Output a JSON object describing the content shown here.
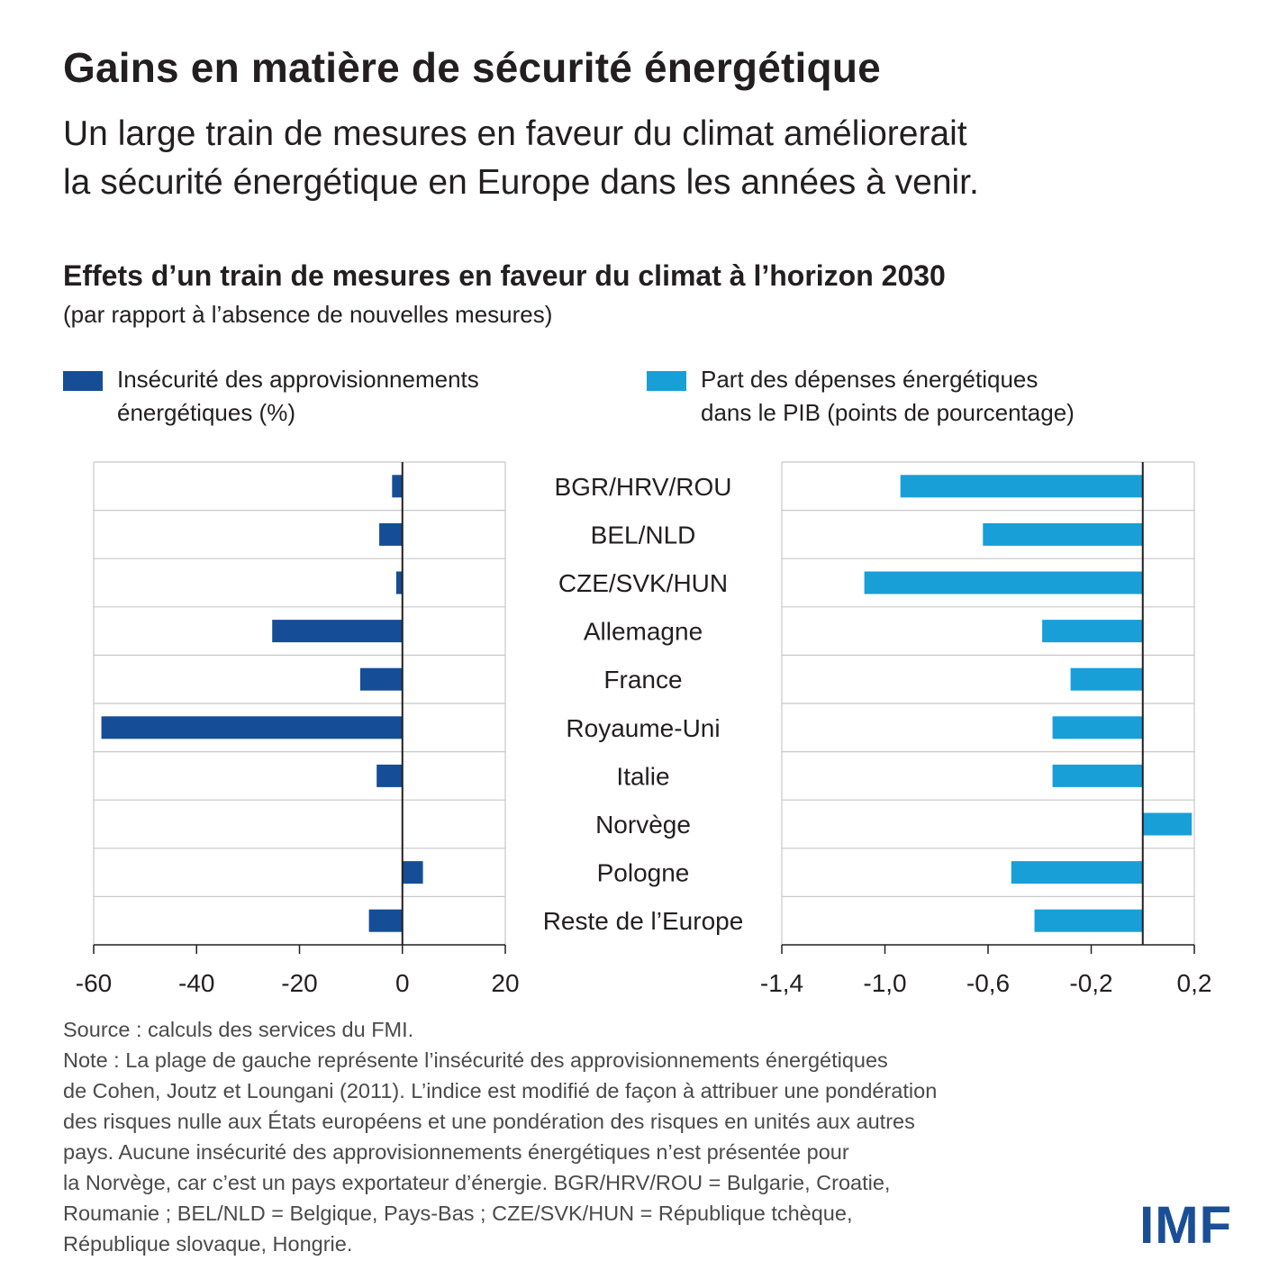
{
  "header": {
    "title": "Gains en matière de sécurité énergétique",
    "subtitle_line1": "Un large train de mesures en faveur du climat améliorerait",
    "subtitle_line2": "la sécurité énergétique en Europe dans les années à venir."
  },
  "colors": {
    "dark_blue": "#154e96",
    "light_blue": "#189fd8",
    "gridline": "#c8c8c8",
    "text": "#231f20",
    "logo": "#1a4f96"
  },
  "chart_data": {
    "type": "bar",
    "orientation": "horizontal",
    "title": "Effets d’un train de mesures en faveur du climat à l’horizon 2030",
    "subtitle": "(par rapport à l’absence de nouvelles mesures)",
    "categories": [
      "BGR/HRV/ROU",
      "BEL/NLD",
      "CZE/SVK/HUN",
      "Allemagne",
      "France",
      "Royaume-Uni",
      "Italie",
      "Norvège",
      "Pologne",
      "Reste de l’Europe"
    ],
    "panels": [
      {
        "series_name": "Insécurité des approvisionnements énergétiques (%)",
        "legend_text": "Insécurité des approvisionnements\nénergétiques (%)",
        "color": "#154e96",
        "values": [
          -2,
          -4.5,
          -1.2,
          -25.3,
          -8.2,
          -58.5,
          -5,
          null,
          4,
          -6.5
        ],
        "xlim": [
          -60,
          20
        ],
        "ticks": [
          -60,
          -40,
          -20,
          0,
          20
        ],
        "tick_labels": [
          "-60",
          "-40",
          "-20",
          "0",
          "20"
        ]
      },
      {
        "series_name": "Part des dépenses énergétiques dans le PIB (points de pourcentage)",
        "legend_text": "Part des dépenses énergétiques\ndans le PIB (points de pourcentage)",
        "color": "#189fd8",
        "values": [
          -0.94,
          -0.62,
          -1.08,
          -0.39,
          -0.28,
          -0.35,
          -0.35,
          0.19,
          -0.51,
          -0.42
        ],
        "xlim": [
          -1.4,
          0.2
        ],
        "ticks": [
          -1.4,
          -1.0,
          -0.6,
          -0.2,
          0.2
        ],
        "tick_labels": [
          "-1,4",
          "-1,0",
          "-0,6",
          "-0,2",
          "0,2"
        ]
      }
    ],
    "grid": true,
    "legend_position": "top"
  },
  "footer": {
    "source": "Source : calculs des services du FMI.",
    "note": "Note : La plage de gauche représente l’insécurité des approvisionnements énergétiques\nde Cohen, Joutz et Loungani (2011). L’indice est modifié de façon à attribuer une pondération\ndes risques nulle aux États européens et une pondération des risques en unités aux autres\npays. Aucune insécurité des approvisionnements énergétiques n’est présentée pour\nla Norvège, car c’est un pays exportateur d’énergie. BGR/HRV/ROU = Bulgarie, Croatie,\nRoumanie ; BEL/NLD = Belgique, Pays-Bas ; CZE/SVK/HUN = République tchèque,\nRépublique slovaque, Hongrie."
  },
  "logo": {
    "text": "IMF"
  }
}
